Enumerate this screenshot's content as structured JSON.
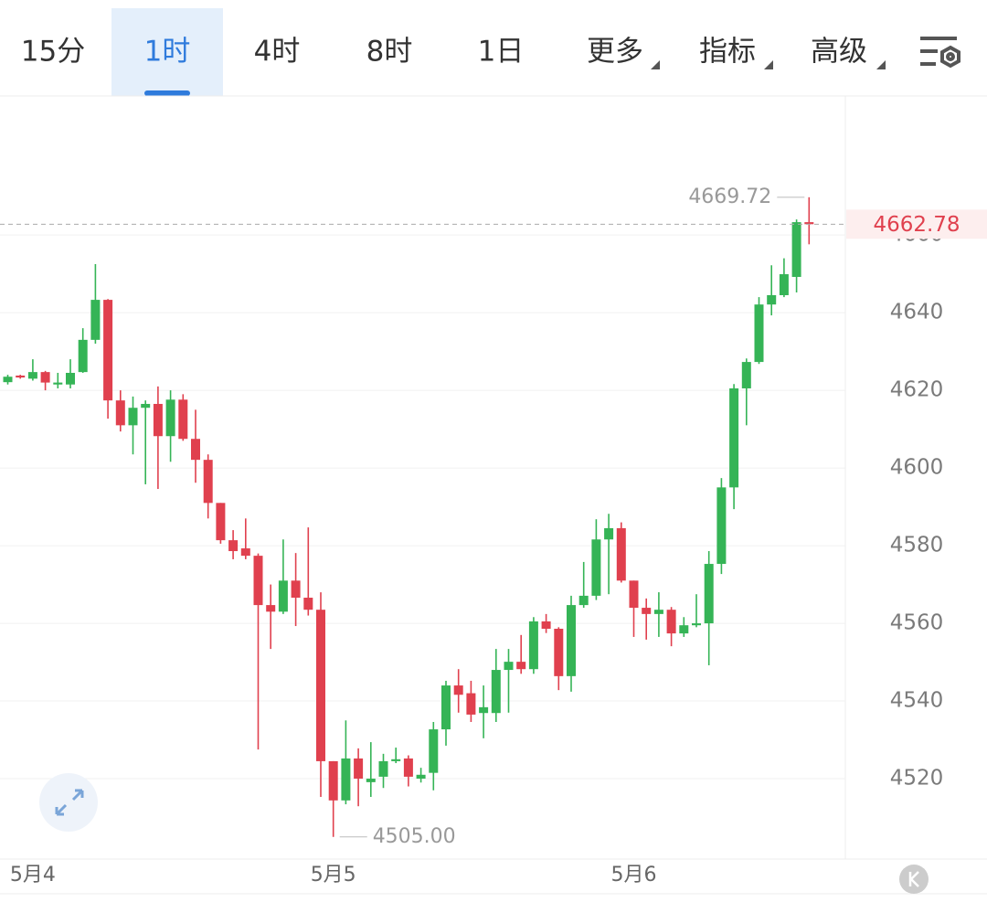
{
  "tabs": {
    "items": [
      "15分",
      "1时",
      "4时",
      "8时",
      "1日",
      "更多",
      "指标",
      "高级"
    ],
    "active": 1
  },
  "chart_data": {
    "type": "candlestick",
    "categories": [
      null,
      null,
      "5月4",
      null,
      null,
      null,
      null,
      null,
      null,
      null,
      null,
      null,
      null,
      null,
      null,
      null,
      null,
      null,
      null,
      null,
      null,
      null,
      null,
      null,
      null,
      null,
      "5月5",
      null,
      null,
      null,
      null,
      null,
      null,
      null,
      null,
      null,
      null,
      null,
      null,
      null,
      null,
      null,
      null,
      null,
      null,
      null,
      null,
      null,
      null,
      null,
      "5月6",
      null,
      null,
      null,
      null,
      null,
      null,
      null,
      null,
      null,
      null,
      null,
      null,
      null,
      null
    ],
    "open": [
      4622.1,
      4623.8,
      4623,
      4624.7,
      4621.5,
      4621.5,
      4624.7,
      4633,
      4643.3,
      4617.4,
      4611,
      4615.5,
      4616.5,
      4608.2,
      4617.6,
      4607.5,
      4602.1,
      4591,
      4581.4,
      4579.3,
      4577.4,
      4564.7,
      4563,
      4571,
      4566.6,
      4563.5,
      4524.5,
      4514.4,
      4525.2,
      4519.1,
      4520.5,
      4524.5,
      4525.2,
      4520,
      4521.5,
      4532.7,
      4544,
      4542,
      4536.9,
      4536.9,
      4548,
      4550.1,
      4548.2,
      4560.5,
      4558.6,
      4546.4,
      4564.7,
      4567.1,
      4581.6,
      4584.5,
      4571,
      4564,
      4562.4,
      4563.5,
      4557.4,
      4559.5,
      4560,
      4575.3,
      4595,
      4620.5,
      4627.3,
      4642.1,
      4644.5,
      4649.2,
      4663.3
    ],
    "high": [
      4624,
      4624,
      4628,
      4625,
      4624.5,
      4628,
      4636,
      4652.5,
      4643.5,
      4620,
      4618.4,
      4617.4,
      4621,
      4620,
      4619,
      4615,
      4603.5,
      4591,
      4584,
      4587,
      4578,
      4570,
      4581.6,
      4578.1,
      4584.7,
      4568,
      4524.5,
      4535,
      4527.8,
      4529.4,
      4526.4,
      4528,
      4526,
      4522.8,
      4534.6,
      4545.2,
      4548.2,
      4545.2,
      4544,
      4553.4,
      4553.4,
      4557,
      4561.6,
      4562.4,
      4559,
      4567.1,
      4575.8,
      4586.8,
      4588.2,
      4586,
      4571,
      4566.4,
      4568,
      4564.2,
      4561.6,
      4567.5,
      4578.6,
      4597.4,
      4621.6,
      4628.2,
      4644,
      4652.2,
      4654,
      4664,
      4669.72
    ],
    "low": [
      4621.5,
      4623,
      4622.5,
      4620,
      4620.5,
      4620.5,
      4624.5,
      4632,
      4612.7,
      4609.4,
      4603.5,
      4595.8,
      4594.6,
      4601.6,
      4607,
      4596.2,
      4587,
      4580.5,
      4576.5,
      4576.5,
      4527.5,
      4553.4,
      4562.4,
      4559.3,
      4562,
      4515.3,
      4505,
      4513.4,
      4512.9,
      4515.3,
      4517.6,
      4524,
      4518,
      4519,
      4517,
      4528.5,
      4537,
      4534.6,
      4530.4,
      4534.6,
      4537,
      4547,
      4547,
      4557.5,
      4542.8,
      4542.4,
      4564,
      4566,
      4567.5,
      4570.5,
      4556.5,
      4555.8,
      4556.5,
      4554.1,
      4556.5,
      4559,
      4549.2,
      4572.7,
      4589.4,
      4611,
      4626.8,
      4639.3,
      4644,
      4645.2,
      4657.6
    ],
    "close": [
      4623.5,
      4623.3,
      4624.7,
      4622,
      4622,
      4624.5,
      4633,
      4643.3,
      4617.4,
      4611,
      4615.5,
      4616.5,
      4608.2,
      4617.6,
      4607.5,
      4602.1,
      4591,
      4581.4,
      4578.6,
      4577.4,
      4564.7,
      4563,
      4571,
      4566.6,
      4563.5,
      4524.5,
      4514.4,
      4525.2,
      4520,
      4520,
      4524.5,
      4525,
      4520.5,
      4521,
      4532.7,
      4544,
      4541.6,
      4536.5,
      4538.4,
      4548,
      4550.1,
      4548.2,
      4560.5,
      4558.6,
      4546.4,
      4564.7,
      4567.1,
      4581.6,
      4584.5,
      4571,
      4564,
      4562.4,
      4563.5,
      4557.4,
      4559.5,
      4560,
      4575.3,
      4595,
      4620.5,
      4627.3,
      4642.1,
      4644.5,
      4649.9,
      4663.3,
      4662.78
    ],
    "up_color": "#35b456",
    "down_color": "#e0404e",
    "ylim": [
      4499.3,
      4695.8
    ],
    "yticks": [
      4520,
      4540,
      4560,
      4580,
      4600,
      4620,
      4640,
      4660
    ],
    "grid": true,
    "high_label": {
      "value": 4669.72,
      "label": "4669.72"
    },
    "low_label": {
      "value": 4505,
      "label": "4505.00"
    },
    "last_price": {
      "value": 4662.78,
      "label": "4662.78"
    }
  }
}
